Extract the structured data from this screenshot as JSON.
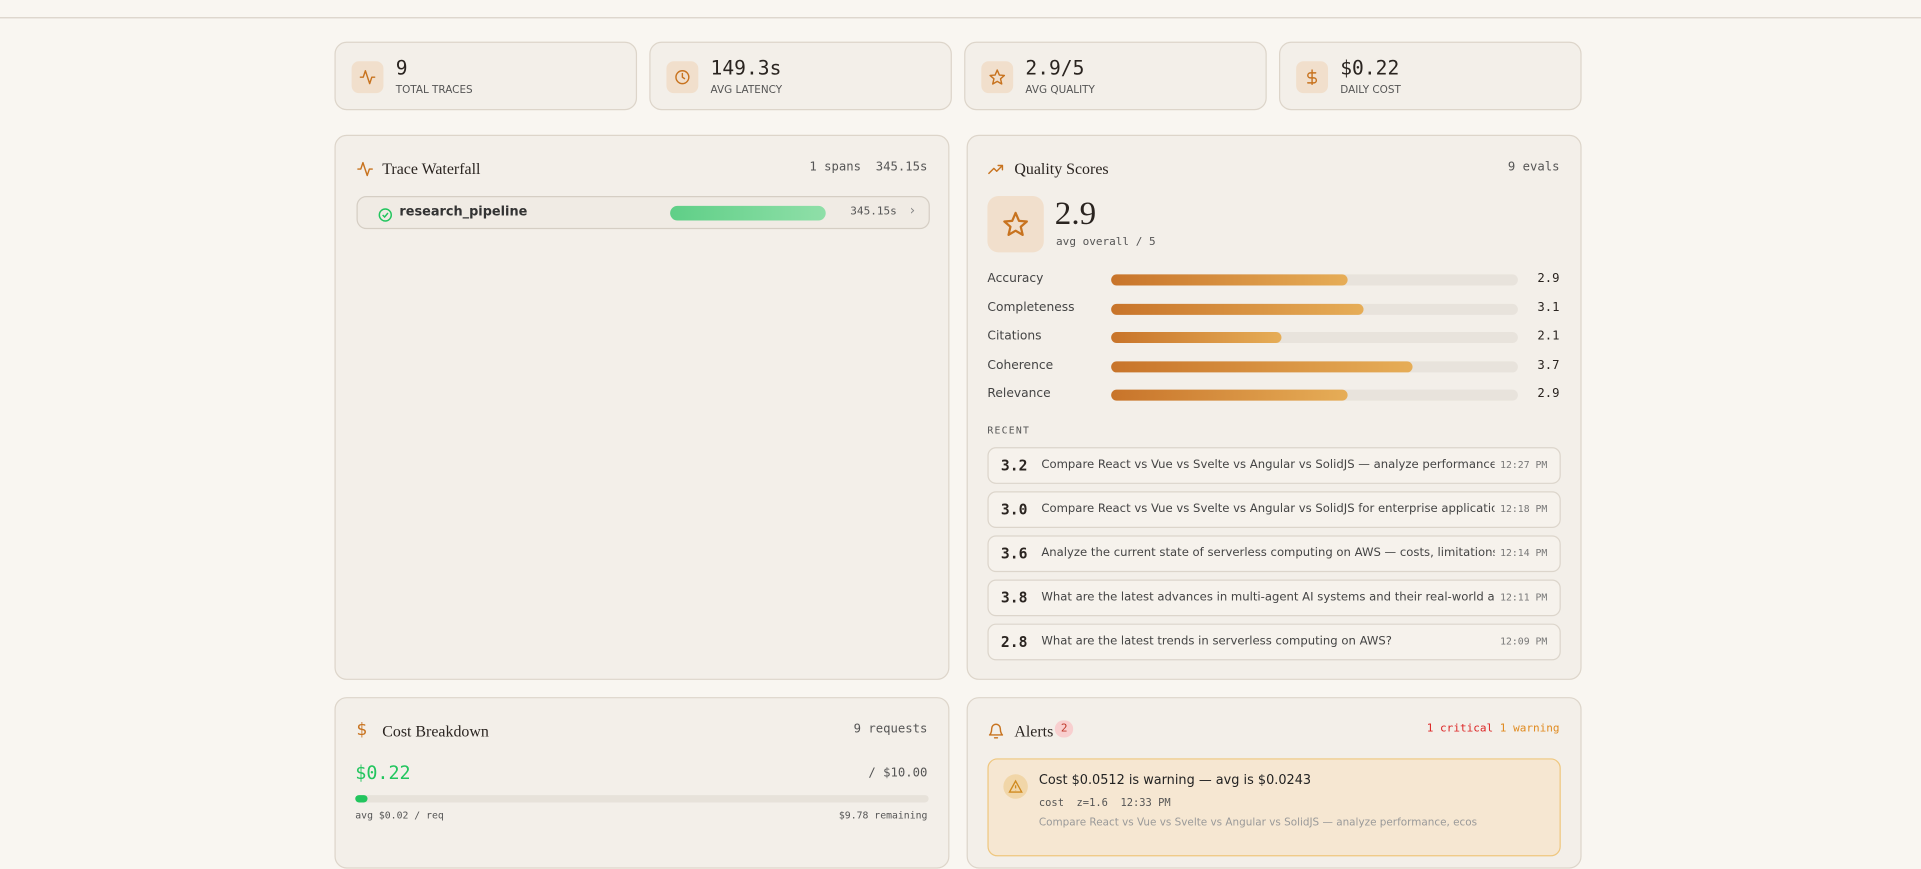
{
  "stats": [
    {
      "value": "9",
      "label": "TOTAL TRACES"
    },
    {
      "value": "149.3s",
      "label": "AVG LATENCY"
    },
    {
      "value": "2.9/5",
      "label": "AVG QUALITY"
    },
    {
      "value": "$0.22",
      "label": "DAILY COST"
    }
  ],
  "waterfall": {
    "title": "Trace Waterfall",
    "spans_count": "1 spans",
    "total": "345.15s",
    "spans": [
      {
        "name": "research_pipeline",
        "duration": "345.15s"
      }
    ]
  },
  "quality": {
    "title": "Quality Scores",
    "evals": "9 evals",
    "score": 2.9,
    "score_label": "avg overall /",
    "score_max": 5,
    "metrics": [
      {
        "name": "Accuracy",
        "value": 2.9
      },
      {
        "name": "Completeness",
        "value": 3.1
      },
      {
        "name": "Citations",
        "value": 2.1
      },
      {
        "name": "Coherence",
        "value": 3.7
      },
      {
        "name": "Relevance",
        "value": 2.9
      }
    ],
    "recent_label": "RECENT",
    "recent": [
      {
        "score": "3.2",
        "text": "Compare React vs Vue vs Svelte vs Angular vs SolidJS — analyze performance, e",
        "time": "12:27 PM"
      },
      {
        "score": "3.0",
        "text": "Compare React vs Vue vs Svelte vs Angular vs SolidJS for enterprise applications",
        "time": "12:18 PM"
      },
      {
        "score": "3.6",
        "text": "Analyze the current state of serverless computing on AWS — costs, limitations, a",
        "time": "12:14 PM"
      },
      {
        "score": "3.8",
        "text": "What are the latest advances in multi-agent AI systems and their real-world appl",
        "time": "12:11 PM"
      },
      {
        "score": "2.8",
        "text": "What are the latest trends in serverless computing on AWS?",
        "time": "12:09 PM"
      }
    ]
  },
  "cost": {
    "title": "Cost Breakdown",
    "requests": "9 requests",
    "spent": 0.22,
    "spent_label": "$0.22",
    "budget": 10,
    "budget_label": "/ $10.00",
    "avg": "avg $0.02 / req",
    "remaining": "$9.78 remaining"
  },
  "alerts": {
    "title": "Alerts",
    "count": "2",
    "critical": "1 critical",
    "warning": "1 warning",
    "items": [
      {
        "title": "Cost $0.0512 is warning — avg is $0.0243",
        "metric": "cost",
        "z": "z=1.6",
        "time": "12:33 PM",
        "detail": "Compare React vs Vue vs Svelte vs Angular vs SolidJS — analyze performance, ecos"
      }
    ]
  }
}
